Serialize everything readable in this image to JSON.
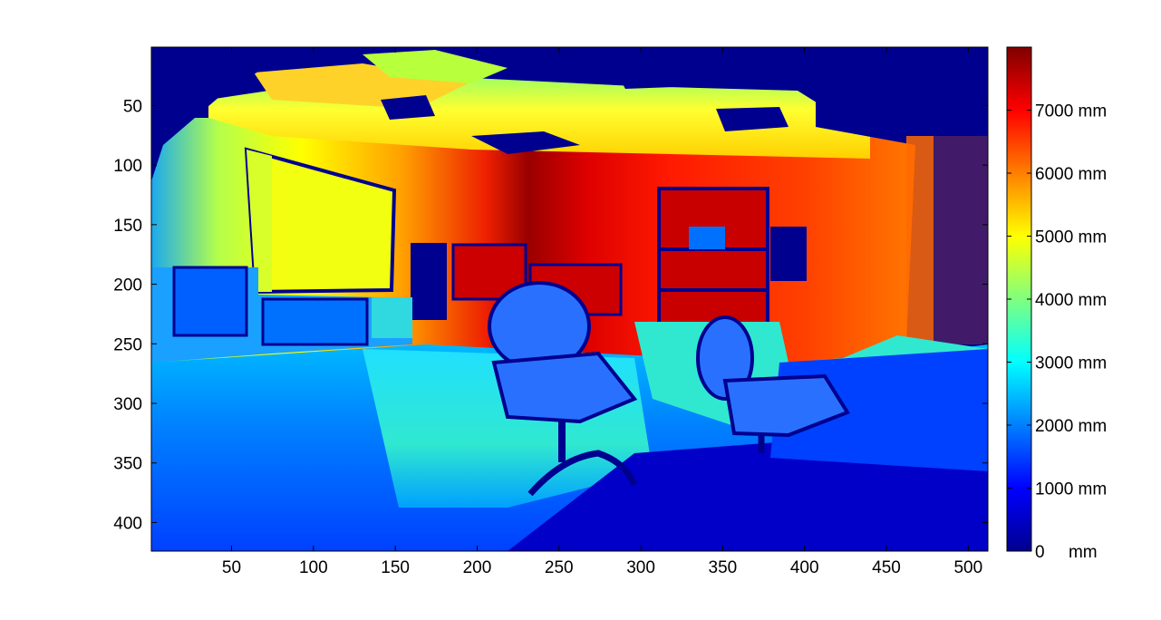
{
  "chart_data": {
    "type": "heatmap",
    "title": "",
    "xlabel": "",
    "ylabel": "",
    "xlim": [
      1,
      512
    ],
    "ylim": [
      424,
      1
    ],
    "x_ticks": [
      50,
      100,
      150,
      200,
      250,
      300,
      350,
      400,
      450,
      500
    ],
    "y_ticks": [
      50,
      100,
      150,
      200,
      250,
      300,
      350,
      400
    ],
    "x_tick_labels": [
      "50",
      "100",
      "150",
      "200",
      "250",
      "300",
      "350",
      "400",
      "450",
      "500"
    ],
    "y_tick_labels": [
      "50",
      "100",
      "150",
      "200",
      "250",
      "300",
      "350",
      "400"
    ],
    "colormap": "jet",
    "colorbar": {
      "range": [
        0,
        8000
      ],
      "ticks": [
        0,
        1000,
        2000,
        3000,
        4000,
        5000,
        6000,
        7000
      ],
      "labels": [
        "0     mm",
        "1000 mm",
        "2000 mm",
        "3000 mm",
        "4000 mm",
        "5000 mm",
        "6000 mm",
        "7000 mm"
      ]
    }
  }
}
